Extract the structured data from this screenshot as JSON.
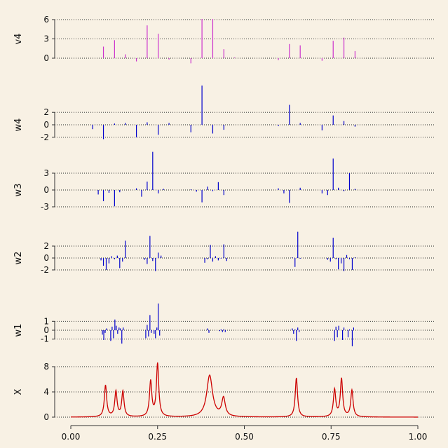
{
  "chart_data": {
    "type": "wavelet-decomposition",
    "x_axis": {
      "range": [
        0.0,
        1.0
      ],
      "ticks": [
        0.0,
        0.25,
        0.5,
        0.75,
        1.0
      ],
      "tick_labels": [
        "0.00",
        "0.25",
        "0.50",
        "0.75",
        "1.00"
      ]
    },
    "panels": [
      {
        "label": "v4",
        "color": "#cc33cc",
        "type": "spikes",
        "ylim": [
          -1.5,
          7
        ],
        "yticks": [
          0,
          3,
          6
        ],
        "ytick_labels": [
          "0",
          "3",
          "6"
        ],
        "gridlines": [
          0,
          3,
          6
        ],
        "points": [
          [
            0.094,
            1.8
          ],
          [
            0.126,
            2.8
          ],
          [
            0.157,
            0.6
          ],
          [
            0.189,
            -0.5
          ],
          [
            0.22,
            5.1
          ],
          [
            0.252,
            3.8
          ],
          [
            0.283,
            -0.2
          ],
          [
            0.346,
            -0.8
          ],
          [
            0.378,
            6.1
          ],
          [
            0.409,
            6.1
          ],
          [
            0.441,
            1.4
          ],
          [
            0.472,
            0.1
          ],
          [
            0.598,
            -0.3
          ],
          [
            0.63,
            2.2
          ],
          [
            0.661,
            2.0
          ],
          [
            0.724,
            -0.4
          ],
          [
            0.756,
            2.7
          ],
          [
            0.787,
            3.2
          ],
          [
            0.819,
            1.1
          ]
        ]
      },
      {
        "label": "w4",
        "color": "#0000cc",
        "type": "spikes",
        "ylim": [
          -3,
          6
        ],
        "yticks": [
          -2,
          0,
          2
        ],
        "ytick_labels": [
          "-2",
          "0",
          "2"
        ],
        "gridlines": [
          -2,
          0,
          2
        ],
        "points": [
          [
            0.063,
            -0.7
          ],
          [
            0.094,
            -2.3
          ],
          [
            0.126,
            0.2
          ],
          [
            0.157,
            0.3
          ],
          [
            0.189,
            -2.0
          ],
          [
            0.22,
            0.4
          ],
          [
            0.252,
            -1.6
          ],
          [
            0.283,
            0.3
          ],
          [
            0.346,
            -1.2
          ],
          [
            0.378,
            6.3
          ],
          [
            0.409,
            -1.4
          ],
          [
            0.441,
            -0.8
          ],
          [
            0.598,
            -0.2
          ],
          [
            0.63,
            3.2
          ],
          [
            0.661,
            0.3
          ],
          [
            0.724,
            -0.9
          ],
          [
            0.756,
            1.5
          ],
          [
            0.787,
            0.6
          ],
          [
            0.819,
            -0.3
          ]
        ]
      },
      {
        "label": "w3",
        "color": "#0000cc",
        "type": "spikes",
        "ylim": [
          -4.5,
          6.5
        ],
        "yticks": [
          -3,
          0,
          3
        ],
        "ytick_labels": [
          "-3",
          "0",
          "3"
        ],
        "gridlines": [
          -3,
          0,
          3
        ],
        "points": [
          [
            0.079,
            -0.8
          ],
          [
            0.094,
            -2.0
          ],
          [
            0.11,
            -0.5
          ],
          [
            0.126,
            -2.9
          ],
          [
            0.141,
            -0.4
          ],
          [
            0.189,
            0.3
          ],
          [
            0.204,
            -1.2
          ],
          [
            0.22,
            1.5
          ],
          [
            0.236,
            6.8
          ],
          [
            0.252,
            -0.6
          ],
          [
            0.267,
            0.2
          ],
          [
            0.346,
            0.1
          ],
          [
            0.362,
            -0.3
          ],
          [
            0.378,
            -2.2
          ],
          [
            0.394,
            0.6
          ],
          [
            0.409,
            -0.2
          ],
          [
            0.425,
            1.4
          ],
          [
            0.441,
            -0.9
          ],
          [
            0.598,
            0.3
          ],
          [
            0.614,
            -0.6
          ],
          [
            0.63,
            -2.3
          ],
          [
            0.661,
            0.4
          ],
          [
            0.724,
            -0.6
          ],
          [
            0.74,
            -0.9
          ],
          [
            0.756,
            5.6
          ],
          [
            0.771,
            0.4
          ],
          [
            0.787,
            -0.2
          ],
          [
            0.803,
            3.0
          ],
          [
            0.819,
            0.2
          ]
        ]
      },
      {
        "label": "w2",
        "color": "#0000cc",
        "type": "spikes",
        "ylim": [
          -4,
          6
        ],
        "yticks": [
          -2,
          0,
          2
        ],
        "ytick_labels": [
          "-2",
          "0",
          "2"
        ],
        "gridlines": [
          -2,
          0,
          2
        ],
        "points": [
          [
            0.087,
            -0.4
          ],
          [
            0.094,
            -1.3
          ],
          [
            0.102,
            -2.0
          ],
          [
            0.11,
            -0.9
          ],
          [
            0.118,
            0.3
          ],
          [
            0.126,
            -0.2
          ],
          [
            0.134,
            0.4
          ],
          [
            0.141,
            -1.7
          ],
          [
            0.149,
            -0.6
          ],
          [
            0.157,
            2.9
          ],
          [
            0.212,
            -0.3
          ],
          [
            0.22,
            -1.0
          ],
          [
            0.228,
            3.7
          ],
          [
            0.236,
            -0.5
          ],
          [
            0.244,
            -2.2
          ],
          [
            0.252,
            0.9
          ],
          [
            0.26,
            0.4
          ],
          [
            0.386,
            -0.8
          ],
          [
            0.394,
            -0.2
          ],
          [
            0.402,
            2.2
          ],
          [
            0.409,
            -0.6
          ],
          [
            0.417,
            0.3
          ],
          [
            0.425,
            -0.4
          ],
          [
            0.433,
            -0.1
          ],
          [
            0.441,
            2.3
          ],
          [
            0.449,
            -0.5
          ],
          [
            0.638,
            0.1
          ],
          [
            0.646,
            -1.5
          ],
          [
            0.654,
            4.4
          ],
          [
            0.661,
            -0.1
          ],
          [
            0.74,
            -0.3
          ],
          [
            0.748,
            -0.6
          ],
          [
            0.756,
            3.4
          ],
          [
            0.764,
            -0.2
          ],
          [
            0.771,
            -1.9
          ],
          [
            0.779,
            -0.9
          ],
          [
            0.787,
            -2.2
          ],
          [
            0.795,
            0.5
          ],
          [
            0.803,
            -0.2
          ],
          [
            0.811,
            -2.0
          ],
          [
            0.819,
            0.1
          ]
        ]
      },
      {
        "label": "w1",
        "color": "#0000cc",
        "type": "spikes",
        "ylim": [
          -2.6,
          3.3
        ],
        "yticks": [
          -1,
          0,
          1
        ],
        "ytick_labels": [
          "-1",
          "0",
          "1"
        ],
        "gridlines": [
          -1,
          0,
          1
        ],
        "points": [
          [
            0.091,
            -0.5
          ],
          [
            0.095,
            -1.1
          ],
          [
            0.099,
            -0.3
          ],
          [
            0.103,
            0.2
          ],
          [
            0.115,
            -1.2
          ],
          [
            0.119,
            0.4
          ],
          [
            0.123,
            -0.9
          ],
          [
            0.127,
            1.2
          ],
          [
            0.131,
            0.5
          ],
          [
            0.135,
            -0.4
          ],
          [
            0.139,
            0.3
          ],
          [
            0.143,
            0.2
          ],
          [
            0.147,
            -1.5
          ],
          [
            0.151,
            0.3
          ],
          [
            0.216,
            -0.9
          ],
          [
            0.22,
            0.6
          ],
          [
            0.224,
            -0.7
          ],
          [
            0.228,
            1.7
          ],
          [
            0.232,
            -0.3
          ],
          [
            0.24,
            -0.4
          ],
          [
            0.244,
            -0.9
          ],
          [
            0.248,
            0.3
          ],
          [
            0.252,
            3.0
          ],
          [
            0.256,
            -0.6
          ],
          [
            0.394,
            0.2
          ],
          [
            0.398,
            -0.3
          ],
          [
            0.429,
            -0.1
          ],
          [
            0.433,
            0.1
          ],
          [
            0.437,
            -0.2
          ],
          [
            0.441,
            0.1
          ],
          [
            0.445,
            -0.2
          ],
          [
            0.638,
            0.2
          ],
          [
            0.642,
            -0.4
          ],
          [
            0.646,
            0.1
          ],
          [
            0.65,
            -1.2
          ],
          [
            0.654,
            0.3
          ],
          [
            0.658,
            -0.2
          ],
          [
            0.76,
            -1.2
          ],
          [
            0.764,
            0.4
          ],
          [
            0.768,
            -0.8
          ],
          [
            0.772,
            0.5
          ],
          [
            0.783,
            -1.1
          ],
          [
            0.787,
            0.3
          ],
          [
            0.799,
            -0.8
          ],
          [
            0.803,
            0.1
          ],
          [
            0.811,
            -1.8
          ],
          [
            0.815,
            0.3
          ]
        ]
      },
      {
        "label": "X",
        "color": "#cc0000",
        "type": "line",
        "ylim": [
          -0.5,
          9.5
        ],
        "yticks": [
          0,
          4,
          8
        ],
        "ytick_labels": [
          "0",
          "4",
          "8"
        ],
        "gridlines": [
          0,
          4,
          8
        ],
        "peaks": [
          [
            0.1,
            5.0,
            0.004
          ],
          [
            0.13,
            4.0,
            0.004
          ],
          [
            0.15,
            4.0,
            0.004
          ],
          [
            0.23,
            5.6,
            0.004
          ],
          [
            0.25,
            8.4,
            0.004
          ],
          [
            0.4,
            6.6,
            0.01
          ],
          [
            0.44,
            2.9,
            0.006
          ],
          [
            0.65,
            6.2,
            0.004
          ],
          [
            0.76,
            4.3,
            0.004
          ],
          [
            0.78,
            6.0,
            0.004
          ],
          [
            0.81,
            4.2,
            0.004
          ]
        ]
      }
    ]
  }
}
